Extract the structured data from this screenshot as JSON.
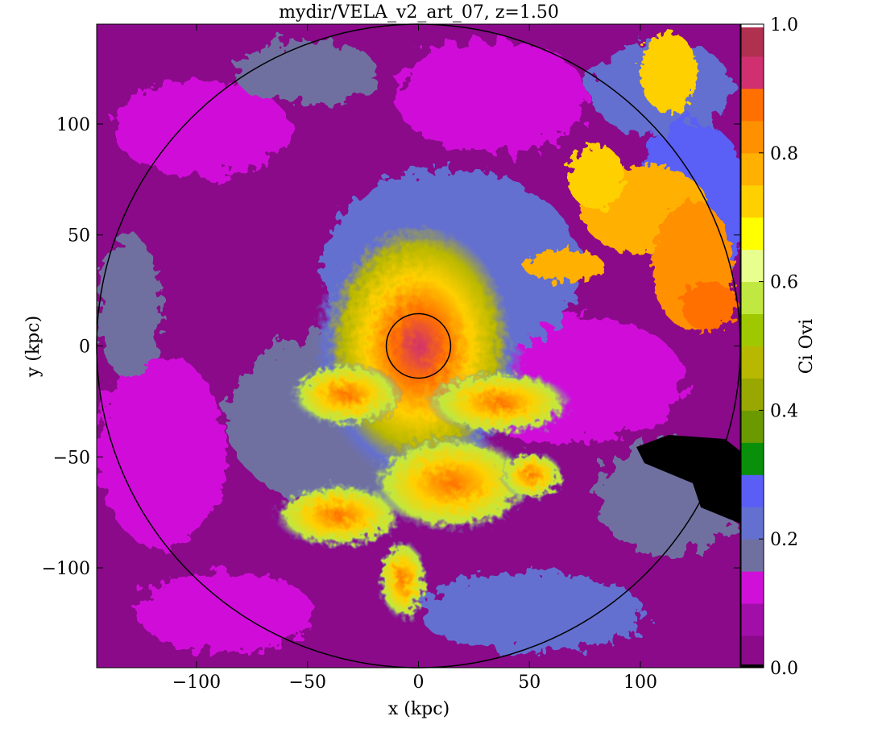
{
  "chart_data": {
    "type": "heatmap",
    "title": "mydir/VELA_v2_art_07, z=1.50",
    "xlabel": "x  (kpc)",
    "ylabel": "y  (kpc)",
    "colorbar_label": "Ci Ovi",
    "xlim": [
      -145,
      145
    ],
    "ylim": [
      -145,
      145
    ],
    "x_ticks": [
      -100,
      -50,
      0,
      50,
      100
    ],
    "x_tick_labels": [
      "−100",
      "−50",
      "0",
      "50",
      "100"
    ],
    "y_ticks": [
      -100,
      -50,
      0,
      50,
      100
    ],
    "y_tick_labels": [
      "−100",
      "−50",
      "0",
      "50",
      "100"
    ],
    "colorbar_range": [
      0.0,
      1.0
    ],
    "colorbar_ticks": [
      0.0,
      0.2,
      0.4,
      0.6,
      0.8,
      1.0
    ],
    "colorbar_tick_labels": [
      "0.0",
      "0.2",
      "0.4",
      "0.6",
      "0.8",
      "1.0"
    ],
    "colorbar_bins": [
      {
        "from": 0.0,
        "to": 0.05,
        "color": "#8a0a8a"
      },
      {
        "from": 0.05,
        "to": 0.1,
        "color": "#a10fa8"
      },
      {
        "from": 0.1,
        "to": 0.15,
        "color": "#d010d8"
      },
      {
        "from": 0.15,
        "to": 0.2,
        "color": "#6f70a0"
      },
      {
        "from": 0.2,
        "to": 0.25,
        "color": "#6470d0"
      },
      {
        "from": 0.25,
        "to": 0.3,
        "color": "#5a5ef5"
      },
      {
        "from": 0.3,
        "to": 0.35,
        "color": "#0a8f0a"
      },
      {
        "from": 0.35,
        "to": 0.4,
        "color": "#6a9a00"
      },
      {
        "from": 0.4,
        "to": 0.45,
        "color": "#98a800"
      },
      {
        "from": 0.45,
        "to": 0.5,
        "color": "#b8b800"
      },
      {
        "from": 0.5,
        "to": 0.55,
        "color": "#a0c800"
      },
      {
        "from": 0.55,
        "to": 0.6,
        "color": "#c0e840"
      },
      {
        "from": 0.6,
        "to": 0.65,
        "color": "#e8ff90"
      },
      {
        "from": 0.65,
        "to": 0.7,
        "color": "#ffff00"
      },
      {
        "from": 0.7,
        "to": 0.75,
        "color": "#ffd000"
      },
      {
        "from": 0.75,
        "to": 0.8,
        "color": "#ffb000"
      },
      {
        "from": 0.8,
        "to": 0.85,
        "color": "#ff9000"
      },
      {
        "from": 0.85,
        "to": 0.9,
        "color": "#ff7000"
      },
      {
        "from": 0.9,
        "to": 0.95,
        "color": "#d03070"
      },
      {
        "from": 0.95,
        "to": 1.0,
        "color": "#b03050"
      }
    ],
    "colorbar_over_color": "#ffffff",
    "colorbar_under_color": "#000000",
    "circles": [
      {
        "name": "outer-circle",
        "center": [
          0,
          0
        ],
        "radius": 145
      },
      {
        "name": "inner-circle",
        "center": [
          0,
          0
        ],
        "radius": 14.5
      }
    ],
    "grid": false
  }
}
